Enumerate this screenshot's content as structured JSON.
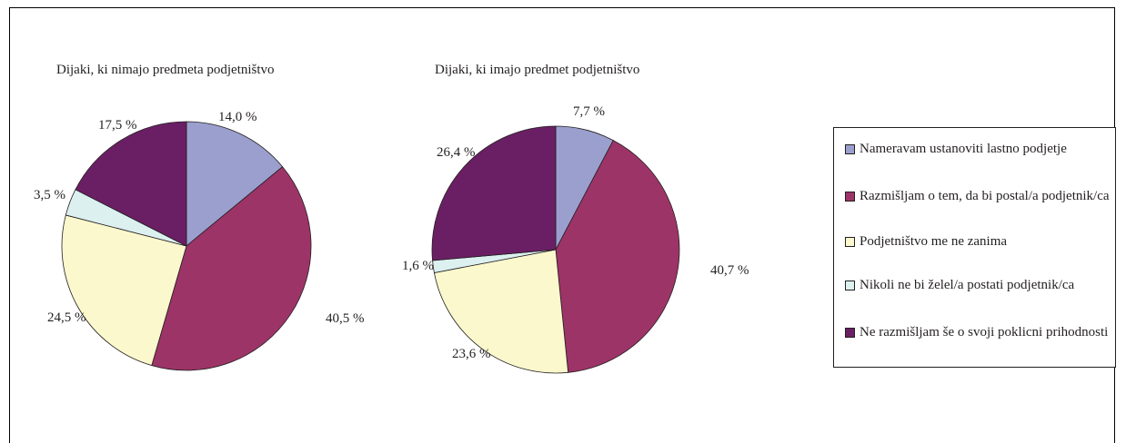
{
  "chart_data": [
    {
      "type": "pie",
      "title": "Dijaki, ki nimajo predmeta podjetništvo",
      "slices": [
        {
          "label": "Nameravam ustanoviti lastno podjetje",
          "value": 14.0,
          "text": "14,0 %",
          "color": "#9b9fce"
        },
        {
          "label": "Razmišljam o tem, da bi postal/a podjetnik/ca",
          "value": 40.5,
          "text": "40,5 %",
          "color": "#9d3467"
        },
        {
          "label": "Podjetništvo me ne zanima",
          "value": 24.5,
          "text": "24,5 %",
          "color": "#fbf8cd"
        },
        {
          "label": "Nikoli ne bi želel/a postati podjetnik/ca",
          "value": 3.5,
          "text": "3,5 %",
          "color": "#dcf0f0"
        },
        {
          "label": "Ne razmišljam še o svoji poklicni prihodnosti",
          "value": 17.5,
          "text": "17,5 %",
          "color": "#6a1f64"
        }
      ]
    },
    {
      "type": "pie",
      "title": "Dijaki, ki imajo predmet podjetništvo",
      "slices": [
        {
          "label": "Nameravam ustanoviti lastno podjetje",
          "value": 7.7,
          "text": "7,7 %",
          "color": "#9b9fce"
        },
        {
          "label": "Razmišljam o tem, da bi postal/a podjetnik/ca",
          "value": 40.7,
          "text": "40,7 %",
          "color": "#9d3467"
        },
        {
          "label": "Podjetništvo me ne zanima",
          "value": 23.6,
          "text": "23,6 %",
          "color": "#fbf8cd"
        },
        {
          "label": "Nikoli ne bi želel/a postati podjetnik/ca",
          "value": 1.6,
          "text": "1,6 %",
          "color": "#dcf0f0"
        },
        {
          "label": "Ne razmišljam še o svoji poklicni prihodnosti",
          "value": 26.4,
          "text": "26,4 %",
          "color": "#6a1f64"
        }
      ]
    }
  ],
  "legend": {
    "placement": "right",
    "items": [
      {
        "label": "Nameravam ustanoviti lastno podjetje",
        "color": "#9b9fce"
      },
      {
        "label": "Razmišljam o tem, da bi postal/a podjetnik/ca",
        "color": "#9d3467"
      },
      {
        "label": "Podjetništvo me ne zanima",
        "color": "#fbf8cd"
      },
      {
        "label": "Nikoli ne bi želel/a postati podjetnik/ca",
        "color": "#dcf0f0"
      },
      {
        "label": "Ne razmišljam še o svoji poklicni prihodnosti",
        "color": "#6a1f64"
      }
    ]
  }
}
